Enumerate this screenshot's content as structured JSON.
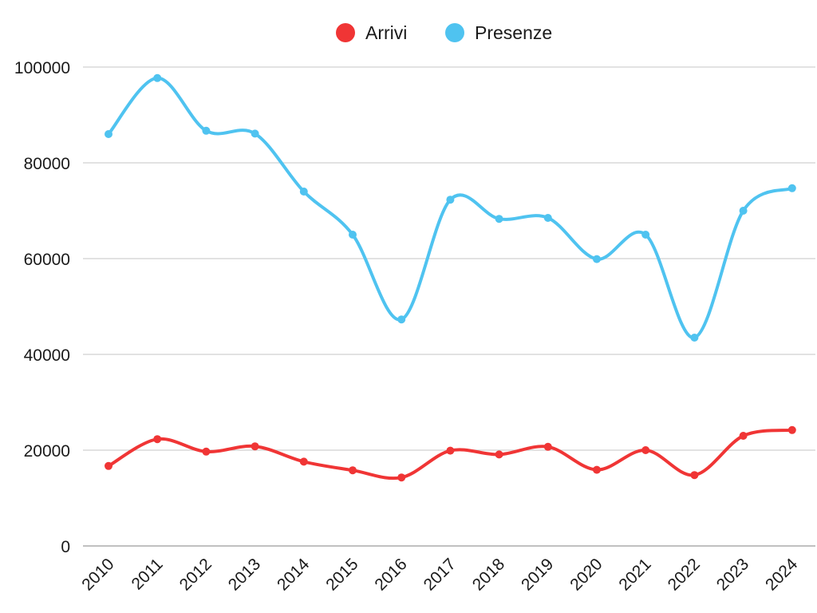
{
  "chart_data": {
    "type": "line",
    "smooth": true,
    "title": "",
    "xlabel": "",
    "ylabel": "",
    "categories": [
      "2010",
      "2011",
      "2012",
      "2013",
      "2014",
      "2015",
      "2016",
      "2017",
      "2018",
      "2019",
      "2020",
      "2021",
      "2022",
      "2023",
      "2024"
    ],
    "ylim": [
      0,
      100000
    ],
    "yticks": [
      0,
      20000,
      40000,
      60000,
      80000,
      100000
    ],
    "ytick_labels": [
      "0",
      "20000",
      "40000",
      "60000",
      "80000",
      "100000"
    ],
    "grid": true,
    "legend_position": "top-center",
    "series": [
      {
        "name": "Arrivi",
        "color": "#f03535",
        "values": [
          16700,
          22300,
          19700,
          20800,
          17600,
          15800,
          14300,
          19900,
          19100,
          20700,
          15900,
          20000,
          14800,
          23000,
          24200
        ]
      },
      {
        "name": "Presenze",
        "color": "#4fc3f0",
        "values": [
          86000,
          97700,
          86700,
          86100,
          74000,
          65000,
          47300,
          72300,
          68300,
          68500,
          59900,
          65000,
          43500,
          70000,
          74700
        ]
      }
    ]
  }
}
